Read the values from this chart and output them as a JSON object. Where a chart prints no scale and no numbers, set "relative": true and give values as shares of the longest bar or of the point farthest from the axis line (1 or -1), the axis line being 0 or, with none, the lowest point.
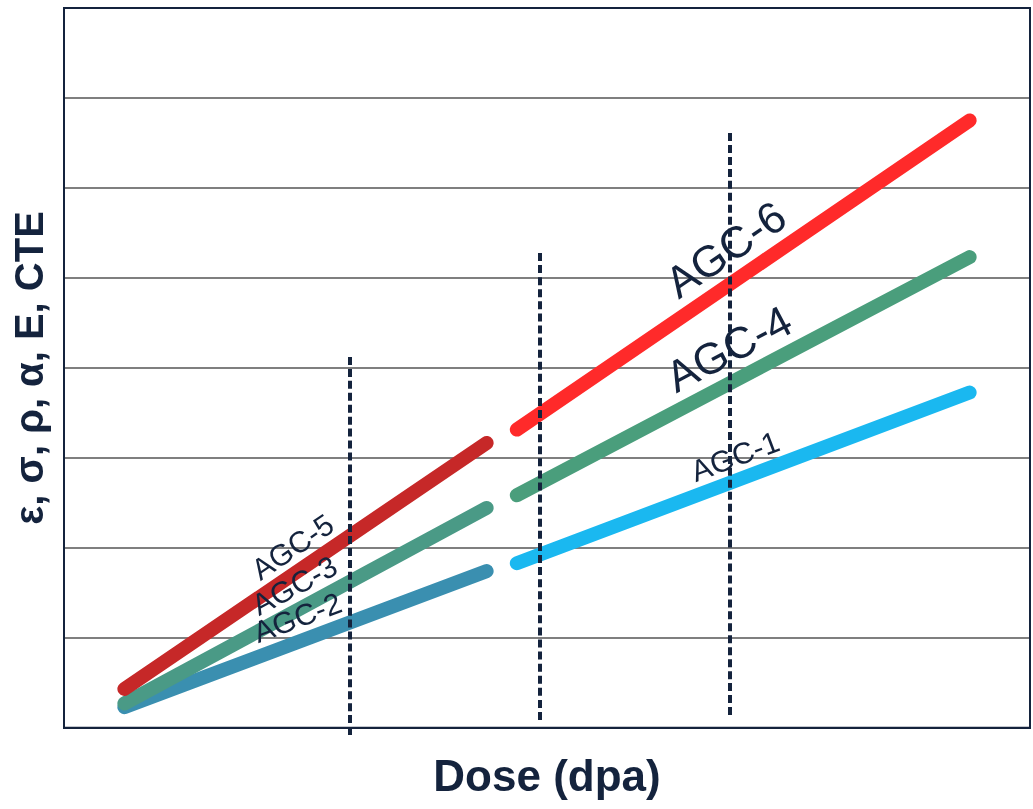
{
  "chart_data": {
    "type": "line",
    "relative": true,
    "xlabel": "Dose (dpa)",
    "ylabel": "ε, σ, ρ, α, E, CTE",
    "grid": "y",
    "legend": false,
    "marker": "none",
    "line_style": "solid",
    "categories": [
      null,
      null,
      null,
      null,
      null,
      null,
      null,
      null,
      null,
      null,
      null,
      null,
      null,
      null,
      null,
      null,
      null,
      null,
      null,
      null,
      null,
      null,
      null,
      null,
      null,
      null,
      null,
      null,
      null,
      null,
      null,
      null,
      null
    ],
    "series": [
      {
        "name": "AGC-5",
        "color": "#c62828",
        "values": [
          null,
          null,
          0.064,
          null,
          null,
          null,
          null,
          null,
          null,
          null,
          null,
          null,
          null,
          null,
          0.469,
          null,
          null,
          null,
          null,
          null,
          null,
          null,
          null,
          null,
          null,
          null,
          null,
          null,
          null,
          null,
          null,
          null,
          null
        ]
      },
      {
        "name": "AGC-6",
        "color": "#ff2a2a",
        "values": [
          null,
          null,
          null,
          null,
          null,
          null,
          null,
          null,
          null,
          null,
          null,
          null,
          null,
          null,
          null,
          0.491,
          null,
          null,
          null,
          null,
          null,
          null,
          null,
          null,
          null,
          null,
          null,
          null,
          null,
          null,
          1.0,
          null,
          null
        ]
      },
      {
        "name": "AGC-3",
        "color": "#4a9a86",
        "values": [
          null,
          null,
          0.04,
          null,
          null,
          null,
          null,
          null,
          null,
          null,
          null,
          null,
          null,
          null,
          0.362,
          null,
          null,
          null,
          null,
          null,
          null,
          null,
          null,
          null,
          null,
          null,
          null,
          null,
          null,
          null,
          null,
          null,
          null
        ]
      },
      {
        "name": "AGC-4",
        "color": "#4a9e7c",
        "values": [
          null,
          null,
          null,
          null,
          null,
          null,
          null,
          null,
          null,
          null,
          null,
          null,
          null,
          null,
          null,
          0.383,
          null,
          null,
          null,
          null,
          null,
          null,
          null,
          null,
          null,
          null,
          null,
          null,
          null,
          null,
          0.775,
          null,
          null
        ]
      },
      {
        "name": "AGC-2",
        "color": "#3a8fb0",
        "values": [
          null,
          null,
          0.034,
          null,
          null,
          null,
          null,
          null,
          null,
          null,
          null,
          null,
          null,
          null,
          0.258,
          null,
          null,
          null,
          null,
          null,
          null,
          null,
          null,
          null,
          null,
          null,
          null,
          null,
          null,
          null,
          null,
          null,
          null
        ]
      },
      {
        "name": "AGC-1",
        "color": "#1ab8f0",
        "values": [
          null,
          null,
          null,
          null,
          null,
          null,
          null,
          null,
          null,
          null,
          null,
          null,
          null,
          null,
          null,
          0.271,
          null,
          null,
          null,
          null,
          null,
          null,
          null,
          null,
          null,
          null,
          null,
          null,
          null,
          null,
          0.552,
          null,
          null
        ]
      }
    ]
  }
}
